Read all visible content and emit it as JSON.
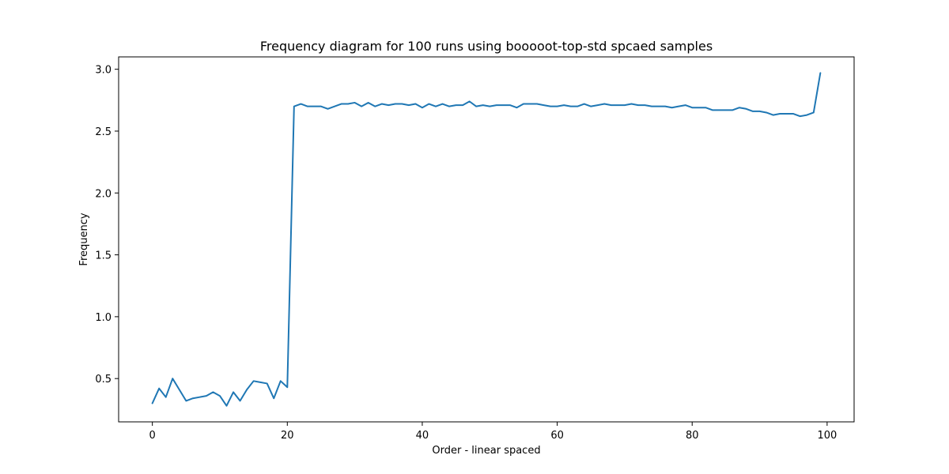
{
  "chart_data": {
    "type": "line",
    "title": "Frequency diagram for 100 runs using booooot-top-std spcaed samples",
    "xlabel": "Order - linear spaced",
    "ylabel": "Frequency",
    "xlim": [
      -5,
      104
    ],
    "ylim": [
      0.15,
      3.1
    ],
    "xticks": [
      0,
      20,
      40,
      60,
      80,
      100
    ],
    "xtick_labels": [
      "0",
      "20",
      "40",
      "60",
      "80",
      "100"
    ],
    "yticks": [
      0.5,
      1.0,
      1.5,
      2.0,
      2.5,
      3.0
    ],
    "ytick_labels": [
      "0.5",
      "1.0",
      "1.5",
      "2.0",
      "2.5",
      "3.0"
    ],
    "grid": false,
    "series": [
      {
        "color": "#1f77b4",
        "x": [
          0,
          1,
          2,
          3,
          4,
          5,
          6,
          7,
          8,
          9,
          10,
          11,
          12,
          13,
          14,
          15,
          16,
          17,
          18,
          19,
          20,
          21,
          22,
          23,
          24,
          25,
          26,
          27,
          28,
          29,
          30,
          31,
          32,
          33,
          34,
          35,
          36,
          37,
          38,
          39,
          40,
          41,
          42,
          43,
          44,
          45,
          46,
          47,
          48,
          49,
          50,
          51,
          52,
          53,
          54,
          55,
          56,
          57,
          58,
          59,
          60,
          61,
          62,
          63,
          64,
          65,
          66,
          67,
          68,
          69,
          70,
          71,
          72,
          73,
          74,
          75,
          76,
          77,
          78,
          79,
          80,
          81,
          82,
          83,
          84,
          85,
          86,
          87,
          88,
          89,
          90,
          91,
          92,
          93,
          94,
          95,
          96,
          97,
          98,
          99
        ],
        "values": [
          0.3,
          0.42,
          0.35,
          0.5,
          0.41,
          0.32,
          0.34,
          0.35,
          0.36,
          0.39,
          0.36,
          0.28,
          0.39,
          0.32,
          0.41,
          0.48,
          0.47,
          0.46,
          0.34,
          0.48,
          0.43,
          2.7,
          2.72,
          2.7,
          2.7,
          2.7,
          2.68,
          2.7,
          2.72,
          2.72,
          2.73,
          2.7,
          2.73,
          2.7,
          2.72,
          2.71,
          2.72,
          2.72,
          2.71,
          2.72,
          2.69,
          2.72,
          2.7,
          2.72,
          2.7,
          2.71,
          2.71,
          2.74,
          2.7,
          2.71,
          2.7,
          2.71,
          2.71,
          2.71,
          2.69,
          2.72,
          2.72,
          2.72,
          2.71,
          2.7,
          2.7,
          2.71,
          2.7,
          2.7,
          2.72,
          2.7,
          2.71,
          2.72,
          2.71,
          2.71,
          2.71,
          2.72,
          2.71,
          2.71,
          2.7,
          2.7,
          2.7,
          2.69,
          2.7,
          2.71,
          2.69,
          2.69,
          2.69,
          2.67,
          2.67,
          2.67,
          2.67,
          2.69,
          2.68,
          2.66,
          2.66,
          2.65,
          2.63,
          2.64,
          2.64,
          2.64,
          2.62,
          2.63,
          2.65,
          2.97
        ]
      }
    ]
  }
}
